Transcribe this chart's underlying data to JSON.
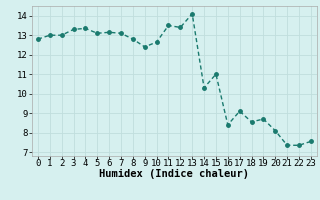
{
  "x": [
    0,
    1,
    2,
    3,
    4,
    5,
    6,
    7,
    8,
    9,
    10,
    11,
    12,
    13,
    14,
    15,
    16,
    17,
    18,
    19,
    20,
    21,
    22,
    23
  ],
  "y": [
    12.8,
    13.0,
    13.0,
    13.3,
    13.35,
    13.1,
    13.15,
    13.1,
    12.8,
    12.4,
    12.65,
    13.5,
    13.4,
    14.1,
    10.3,
    11.0,
    8.4,
    9.1,
    8.55,
    8.7,
    8.1,
    7.35,
    7.35,
    7.55
  ],
  "line_color": "#1a7a6e",
  "marker": "o",
  "markersize": 2.5,
  "linewidth": 1.0,
  "bg_color": "#d6f0ef",
  "grid_color": "#c0dedd",
  "xlabel": "Humidex (Indice chaleur)",
  "xlim": [
    -0.5,
    23.5
  ],
  "ylim": [
    6.8,
    14.5
  ],
  "yticks": [
    7,
    8,
    9,
    10,
    11,
    12,
    13,
    14
  ],
  "xticks": [
    0,
    1,
    2,
    3,
    4,
    5,
    6,
    7,
    8,
    9,
    10,
    11,
    12,
    13,
    14,
    15,
    16,
    17,
    18,
    19,
    20,
    21,
    22,
    23
  ],
  "tick_fontsize": 6.5,
  "label_fontsize": 7.5
}
